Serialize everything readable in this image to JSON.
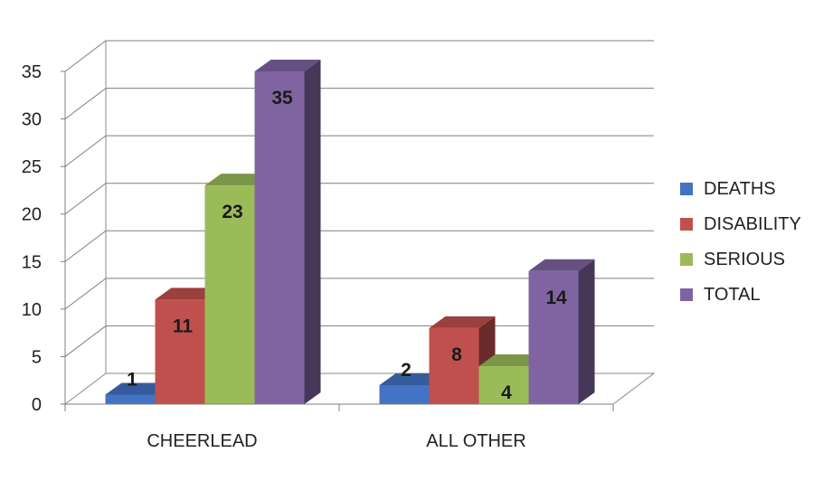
{
  "chart_data": {
    "type": "bar",
    "title": "",
    "xlabel": "",
    "ylabel": "",
    "categories": [
      "CHEERLEAD",
      "ALL OTHER"
    ],
    "series": [
      {
        "name": "DEATHS",
        "values": [
          1,
          2
        ],
        "color": "#4472C4"
      },
      {
        "name": "DISABILITY",
        "values": [
          11,
          8
        ],
        "color": "#C0504D"
      },
      {
        "name": "SERIOUS",
        "values": [
          23,
          4
        ],
        "color": "#9BBB59"
      },
      {
        "name": "TOTAL",
        "values": [
          35,
          14
        ],
        "color": "#8064A2"
      }
    ],
    "ylim": [
      0,
      35
    ],
    "yticks": [
      "0",
      "5",
      "10",
      "15",
      "20",
      "25",
      "30",
      "35"
    ],
    "grid": true,
    "style": "3d-clustered-column",
    "legend_position": "right"
  }
}
